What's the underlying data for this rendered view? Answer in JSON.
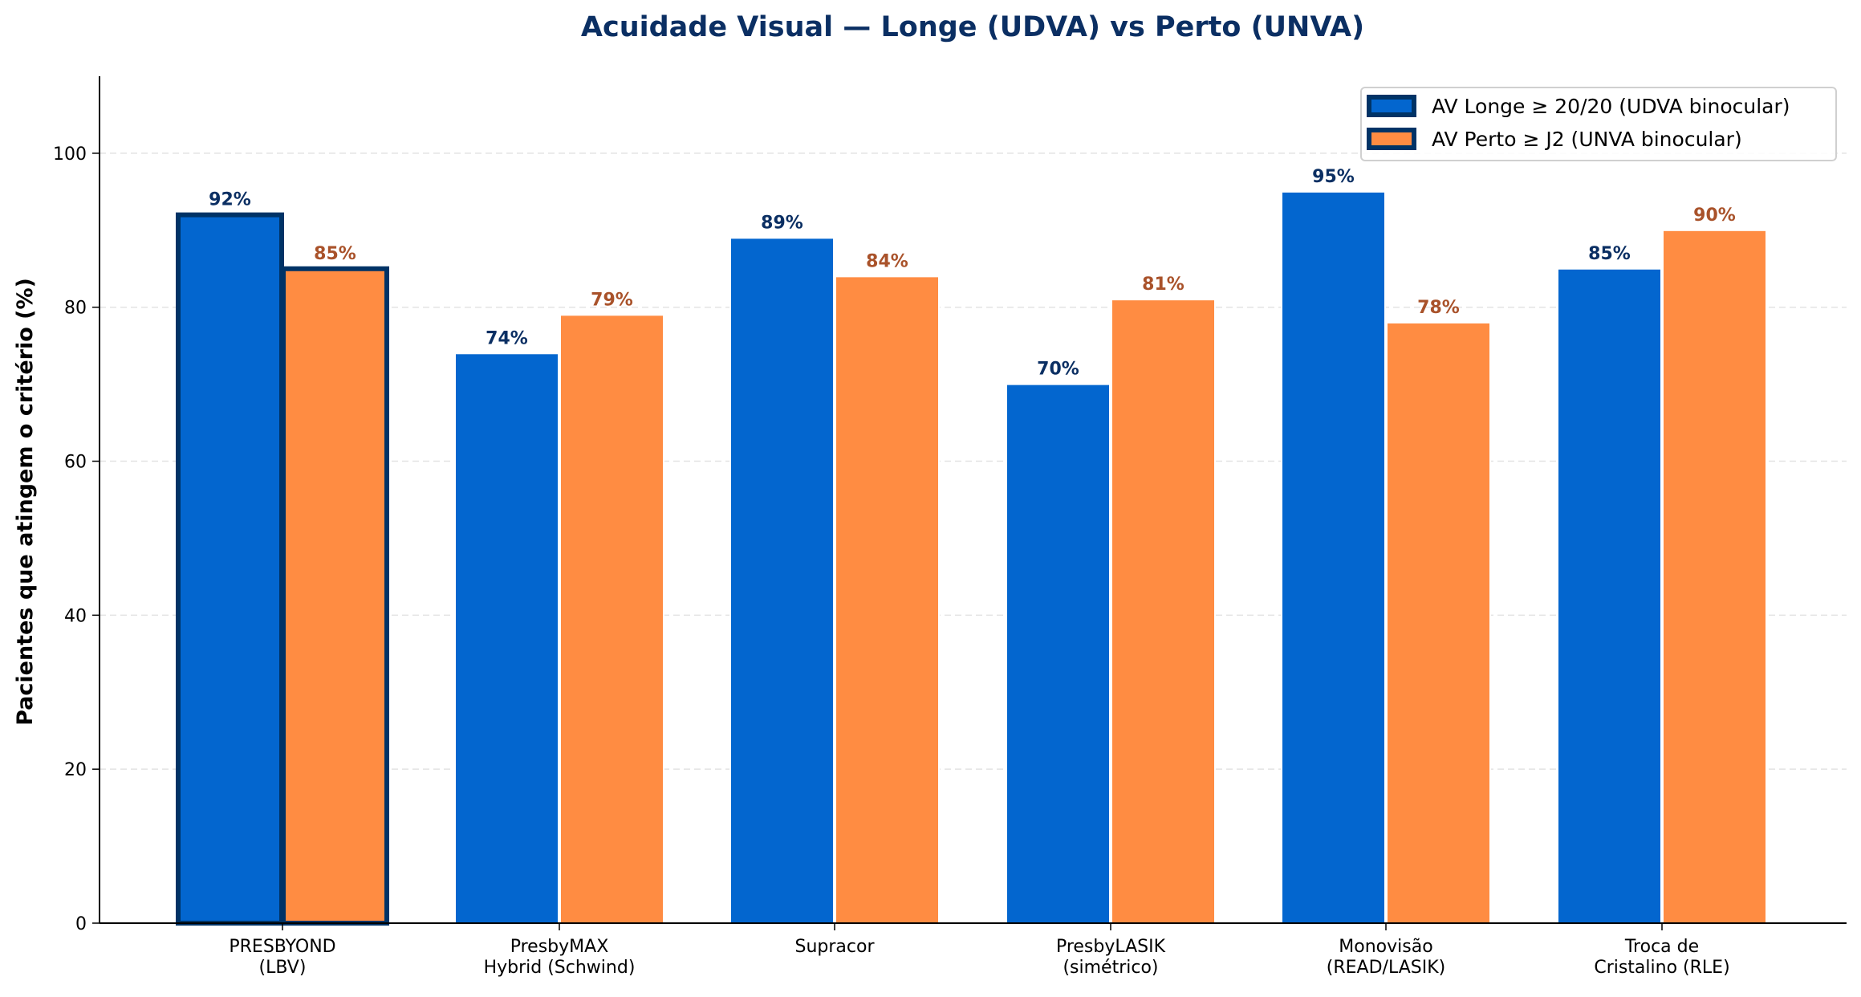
{
  "chart_data": {
    "type": "bar",
    "title": "Acuidade Visual — Longe (UDVA) vs Perto (UNVA)",
    "xlabel": "",
    "ylabel": "Pacientes que atingem o critério (%)",
    "ylim": [
      0,
      110
    ],
    "yticks": [
      0,
      20,
      40,
      60,
      80,
      100
    ],
    "grid": true,
    "legend_position": "top-right",
    "categories": [
      [
        "PRESBYOND",
        "(LBV)"
      ],
      [
        "PresbyMAX",
        "Hybrid (Schwind)"
      ],
      [
        "Supracor"
      ],
      [
        "PresbyLASIK",
        "(simétrico)"
      ],
      [
        "Monovisão",
        "(READ/LASIK)"
      ],
      [
        "Troca de",
        "Cristalino (RLE)"
      ]
    ],
    "highlighted_category": 0,
    "series": [
      {
        "name": "AV Longe ≥ 20/20 (UDVA binocular)",
        "color": "#0366cf",
        "label_color": "#0b2f63",
        "values": [
          92,
          74,
          89,
          70,
          95,
          85
        ],
        "labels": [
          "92%",
          "74%",
          "89%",
          "70%",
          "95%",
          "85%"
        ]
      },
      {
        "name": "AV Perto ≥ J2 (UNVA binocular)",
        "color": "#ff8c42",
        "label_color": "#a9522a",
        "values": [
          85,
          79,
          84,
          81,
          78,
          90
        ],
        "labels": [
          "85%",
          "79%",
          "84%",
          "81%",
          "78%",
          "90%"
        ]
      }
    ],
    "highlight_edge_color": "#003366"
  }
}
